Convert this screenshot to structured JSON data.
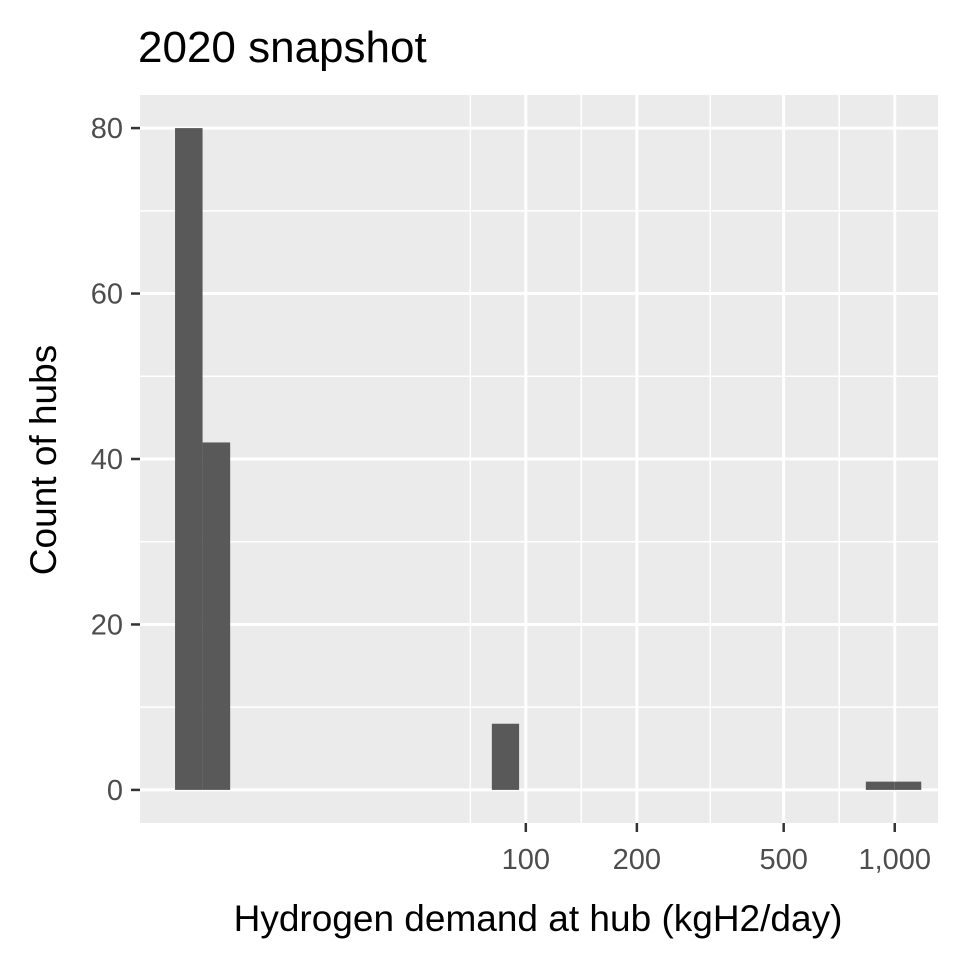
{
  "chart_data": {
    "type": "bar",
    "title": "2020 snapshot",
    "xlabel": "Hydrogen demand at hub (kgH2/day)",
    "ylabel": "Count of hubs",
    "x_scale": "log10",
    "xlim": [
      9,
      1310
    ],
    "ylim": [
      -4,
      84
    ],
    "x_ticks": [
      {
        "value": 100,
        "label": "100"
      },
      {
        "value": 200,
        "label": "200"
      },
      {
        "value": 500,
        "label": "500"
      },
      {
        "value": 1000,
        "label": "1,000"
      }
    ],
    "y_ticks": [
      {
        "value": 0,
        "label": "0"
      },
      {
        "value": 20,
        "label": "20"
      },
      {
        "value": 40,
        "label": "40"
      },
      {
        "value": 60,
        "label": "60"
      },
      {
        "value": 80,
        "label": "80"
      }
    ],
    "bins": [
      {
        "x_start": 11.2,
        "x_end": 13.3,
        "count": 80
      },
      {
        "x_start": 13.3,
        "x_end": 15.8,
        "count": 42
      },
      {
        "x_start": 80.9,
        "x_end": 95.9,
        "count": 8
      },
      {
        "x_start": 835,
        "x_end": 1000,
        "count": 1
      },
      {
        "x_start": 1000,
        "x_end": 1180,
        "count": 1
      }
    ],
    "bar_color": "#595959",
    "panel_background": "#ebebeb",
    "grid_color": "#ffffff",
    "grid": true,
    "legend": "none"
  }
}
